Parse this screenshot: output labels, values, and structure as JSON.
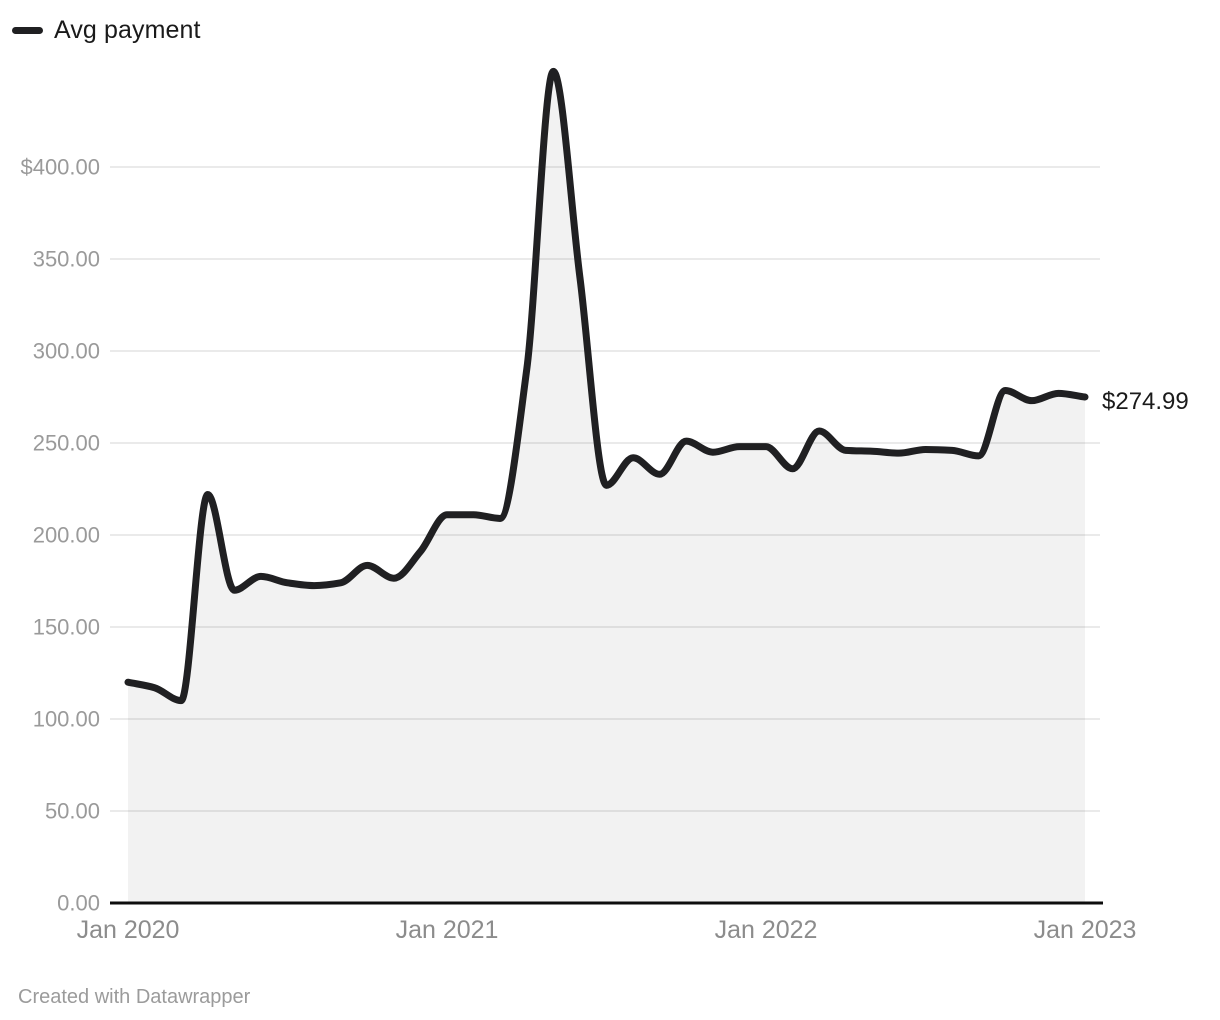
{
  "legend": {
    "label": "Avg payment"
  },
  "end_label": {
    "text": "$274.99"
  },
  "footer": {
    "text": "Created with Datawrapper"
  },
  "chart_data": {
    "type": "area",
    "title": "",
    "series_name": "Avg payment",
    "x": [
      "Jan 2020",
      "Feb 2020",
      "Mar 2020",
      "Apr 2020",
      "May 2020",
      "Jun 2020",
      "Jul 2020",
      "Aug 2020",
      "Sep 2020",
      "Oct 2020",
      "Nov 2020",
      "Dec 2020",
      "Jan 2021",
      "Feb 2021",
      "Mar 2021",
      "Apr 2021",
      "May 2021",
      "Jun 2021",
      "Jul 2021",
      "Aug 2021",
      "Sep 2021",
      "Oct 2021",
      "Nov 2021",
      "Dec 2021",
      "Jan 2022",
      "Feb 2022",
      "Mar 2022",
      "Apr 2022",
      "May 2022",
      "Jun 2022",
      "Jul 2022",
      "Aug 2022",
      "Sep 2022",
      "Oct 2022",
      "Nov 2022",
      "Dec 2022",
      "Jan 2023"
    ],
    "values": [
      120,
      117,
      110,
      222,
      170,
      177.5,
      174,
      172.5,
      174,
      183.5,
      176.5,
      191,
      211,
      211,
      209,
      290,
      452,
      340,
      227,
      242,
      233,
      251,
      245,
      248,
      248,
      236,
      256.5,
      246,
      245.5,
      244.5,
      246.5,
      246,
      243,
      278.5,
      273,
      277,
      274.99
    ],
    "ylim": [
      0,
      460
    ],
    "yticks": [
      {
        "v": 400,
        "label": "$400.00"
      },
      {
        "v": 350,
        "label": "350.00"
      },
      {
        "v": 300,
        "label": "300.00"
      },
      {
        "v": 250,
        "label": "250.00"
      },
      {
        "v": 200,
        "label": "200.00"
      },
      {
        "v": 150,
        "label": "150.00"
      },
      {
        "v": 100,
        "label": "100.00"
      },
      {
        "v": 50,
        "label": "50.00"
      },
      {
        "v": 0,
        "label": "0.00"
      }
    ],
    "xticks": [
      {
        "label": "Jan 2020",
        "month_index": 0
      },
      {
        "label": "Jan 2021",
        "month_index": 12
      },
      {
        "label": "Jan 2022",
        "month_index": 24
      },
      {
        "label": "Jan 2023",
        "month_index": 36
      }
    ],
    "grid": "horizontal-only",
    "legend_position": "top-left",
    "last_value_label": "$274.99",
    "line_color": "#202022",
    "area_fill": "rgba(24,24,26,0.055)",
    "axis_color": "#0d0d0d",
    "gridline_color": "#e4e4e4",
    "ytick_color": "#9a9a9a",
    "xtick_color": "#8c8c8c"
  }
}
